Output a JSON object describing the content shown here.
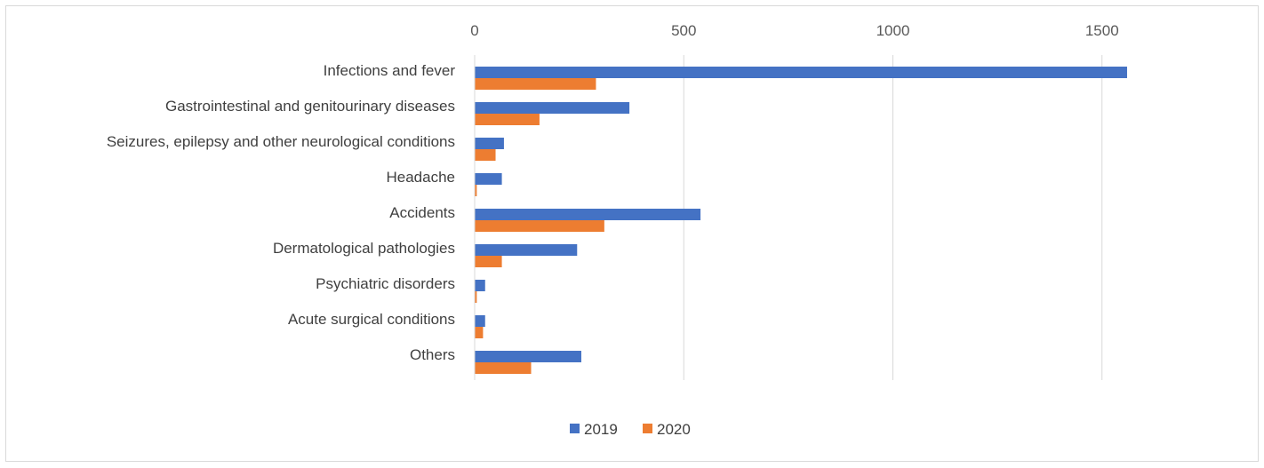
{
  "chart_data": {
    "type": "bar",
    "orientation": "horizontal",
    "categories": [
      "Infections and fever",
      "Gastrointestinal and genitourinary diseases",
      "Seizures, epilepsy and other neurological conditions",
      "Headache",
      "Accidents",
      "Dermatological pathologies",
      "Psychiatric disorders",
      "Acute surgical conditions",
      "Others"
    ],
    "series": [
      {
        "name": "2019",
        "color": "#4472c4",
        "values": [
          1560,
          370,
          70,
          65,
          540,
          245,
          25,
          25,
          255
        ]
      },
      {
        "name": "2020",
        "color": "#ed7d31",
        "values": [
          290,
          155,
          50,
          5,
          310,
          65,
          5,
          20,
          135
        ]
      }
    ],
    "xlim": [
      0,
      1750
    ],
    "xticks": [
      "0",
      "500",
      "1000",
      "1500"
    ],
    "xtick_values": [
      0,
      500,
      1000,
      1500
    ],
    "x_axis_position": "top",
    "grid": true,
    "legend_position": "bottom",
    "title": "",
    "xlabel": "",
    "ylabel": ""
  }
}
